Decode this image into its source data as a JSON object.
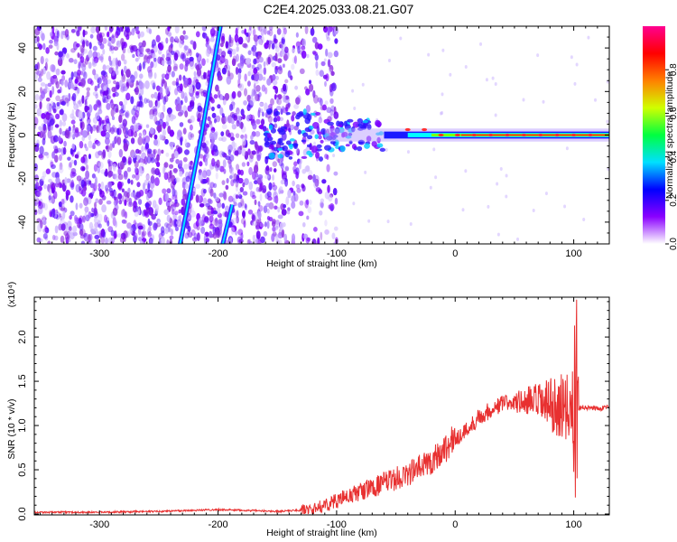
{
  "title": "C2E4.2025.033.08.21.G07",
  "chart_data": [
    {
      "type": "heatmap",
      "xlabel": "Height of straight line (km)",
      "ylabel": "Frequency (Hz)",
      "xlim": [
        -355,
        130
      ],
      "ylim": [
        -50,
        50
      ],
      "xticks": [
        -300,
        -200,
        -100,
        0,
        100
      ],
      "yticks": [
        -40,
        -20,
        0,
        20,
        40
      ],
      "colorbar": {
        "label": "Normalized spectral amplitude",
        "range": [
          0,
          1
        ],
        "ticks": [
          "0.0",
          "0.2",
          "0.4",
          "0.6",
          "0.8"
        ],
        "colors": [
          "#ffffff",
          "#8a00ff",
          "#0000ff",
          "#00e0ff",
          "#00ff40",
          "#d0ff00",
          "#ff8000",
          "#ff0000",
          "#ff0090"
        ]
      },
      "features": [
        {
          "name": "noise",
          "x_range": [
            -355,
            -110
          ],
          "y_range": [
            -50,
            50
          ]
        },
        {
          "name": "stable_tone",
          "x_range": [
            -110,
            130
          ],
          "frequency": 0
        },
        {
          "name": "diagonal_line_1",
          "points": [
            [
              -232,
              -50
            ],
            [
              -214,
              0
            ],
            [
              -198,
              50
            ]
          ]
        },
        {
          "name": "diagonal_line_2",
          "points": [
            [
              -196,
              -50
            ],
            [
              -188,
              -32
            ]
          ]
        }
      ]
    },
    {
      "type": "line",
      "xlabel": "Height of straight line (km)",
      "ylabel": "SNR (10 * v/v)",
      "y_scale_label": "(x10⁴)",
      "xlim": [
        -355,
        130
      ],
      "ylim": [
        -0.01,
        2.45
      ],
      "xticks": [
        -300,
        -200,
        -100,
        0,
        100
      ],
      "yticks": [
        "0.0",
        "0.5",
        "1.0",
        "1.5",
        "2.0"
      ],
      "color": "#e83030",
      "series": [
        {
          "x": [
            -355,
            -300,
            -250,
            -200,
            -150,
            -120,
            -100,
            -80,
            -60,
            -40,
            -20,
            0,
            10,
            20,
            40,
            60,
            80,
            100,
            105,
            130
          ],
          "y": [
            0.02,
            0.02,
            0.03,
            0.05,
            0.03,
            0.05,
            0.15,
            0.25,
            0.35,
            0.45,
            0.6,
            0.85,
            0.95,
            1.1,
            1.25,
            1.27,
            1.23,
            1.2,
            1.2,
            1.2
          ]
        }
      ]
    }
  ]
}
